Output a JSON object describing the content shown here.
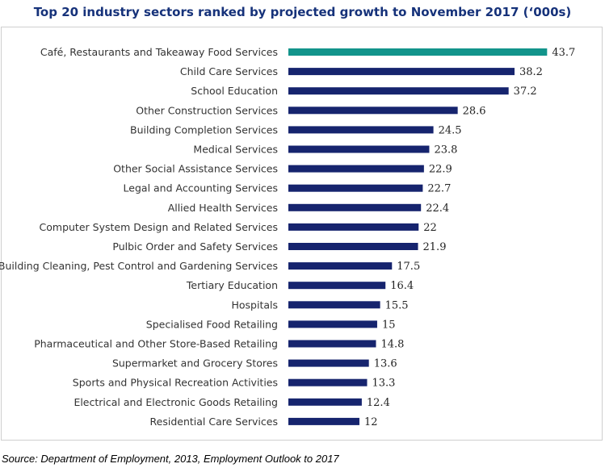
{
  "header": {
    "title": "Top 20 industry sectors ranked by projected growth to November 2017 (‘000s)"
  },
  "footer": {
    "source": "Source: Department of Employment, 2013, Employment Outlook to 2017"
  },
  "colors": {
    "highlight": "#12948b",
    "bar": "#16246e",
    "title": "#16327a"
  },
  "chart_data": {
    "type": "bar",
    "orientation": "horizontal",
    "title": "Top 20 industry sectors ranked by projected growth to November 2017 (‘000s)",
    "xlabel": "",
    "ylabel": "",
    "xlim": [
      0,
      50
    ],
    "grid": false,
    "data_labels": true,
    "highlighted_category": "Café, Restaurants and Takeaway Food Services",
    "categories": [
      "Café, Restaurants and Takeaway Food Services",
      "Child Care Services",
      "School Education",
      "Other Construction Services",
      "Building Completion Services",
      "Medical Services",
      "Other Social Assistance Services",
      "Legal and Accounting Services",
      "Allied Health Services",
      "Computer System Design and Related Services",
      "Pulbic Order and Safety Services",
      "Building Cleaning, Pest Control and Gardening Services",
      "Tertiary Education",
      "Hospitals",
      "Specialised Food Retailing",
      "Pharmaceutical and Other Store-Based Retailing",
      "Supermarket and Grocery Stores",
      "Sports and Physical Recreation Activities",
      "Electrical and Electronic Goods Retailing",
      "Residential Care Services"
    ],
    "values": [
      43.7,
      38.2,
      37.2,
      28.6,
      24.5,
      23.8,
      22.9,
      22.7,
      22.4,
      22,
      21.9,
      17.5,
      16.4,
      15.5,
      15,
      14.8,
      13.6,
      13.3,
      12.4,
      12
    ],
    "value_labels": [
      "43.7",
      "38.2",
      "37.2",
      "28.6",
      "24.5",
      "23.8",
      "22.9",
      "22.7",
      "22.4",
      "22",
      "21.9",
      "17.5",
      "16.4",
      "15.5",
      "15",
      "14.8",
      "13.6",
      "13.3",
      "12.4",
      "12"
    ]
  }
}
